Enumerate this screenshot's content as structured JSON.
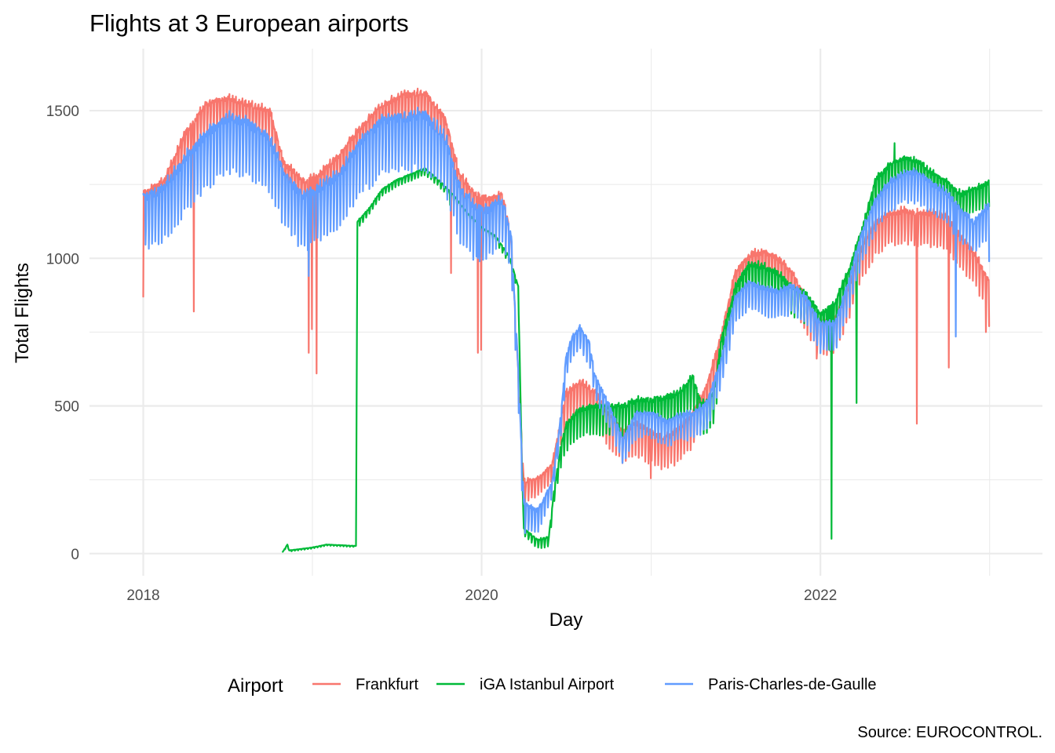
{
  "chart_data": {
    "type": "line",
    "title": "Flights at 3 European airports",
    "xlabel": "Day",
    "ylabel": "Total Flights",
    "caption": "Source: EUROCONTROL.",
    "legend_title": "Airport",
    "legend_position": "bottom",
    "grid": true,
    "xlim": [
      "2017-09-07",
      "2023-04-25"
    ],
    "ylim": [
      -75,
      1710
    ],
    "x_ticks": [
      2018,
      2020,
      2022
    ],
    "y_ticks": [
      0,
      500,
      1000,
      1500
    ],
    "colors": {
      "Frankfurt": "#F8766D",
      "iGA Istanbul Airport": "#00BA38",
      "Paris-Charles-de-Gaulle": "#619CFF"
    },
    "series": [
      {
        "name": "Frankfurt",
        "color": "#F8766D",
        "base": [
          [
            "2018-01-01",
            1200
          ],
          [
            "2018-02-15",
            1240
          ],
          [
            "2018-04-01",
            1400
          ],
          [
            "2018-05-15",
            1500
          ],
          [
            "2018-07-01",
            1520
          ],
          [
            "2018-08-15",
            1500
          ],
          [
            "2018-10-01",
            1480
          ],
          [
            "2018-11-01",
            1300
          ],
          [
            "2018-12-15",
            1240
          ],
          [
            "2019-01-15",
            1260
          ],
          [
            "2019-03-01",
            1330
          ],
          [
            "2019-04-15",
            1420
          ],
          [
            "2019-06-01",
            1500
          ],
          [
            "2019-07-15",
            1530
          ],
          [
            "2019-09-01",
            1540
          ],
          [
            "2019-10-15",
            1450
          ],
          [
            "2019-11-15",
            1260
          ],
          [
            "2019-12-15",
            1200
          ],
          [
            "2020-01-15",
            1180
          ],
          [
            "2020-02-15",
            1200
          ],
          [
            "2020-03-05",
            1050
          ],
          [
            "2020-03-20",
            600
          ],
          [
            "2020-04-01",
            230
          ],
          [
            "2020-05-01",
            240
          ],
          [
            "2020-06-01",
            290
          ],
          [
            "2020-07-01",
            520
          ],
          [
            "2020-08-01",
            560
          ],
          [
            "2020-09-01",
            530
          ],
          [
            "2020-10-01",
            450
          ],
          [
            "2020-11-01",
            390
          ],
          [
            "2020-12-01",
            420
          ],
          [
            "2021-01-01",
            390
          ],
          [
            "2021-02-01",
            370
          ],
          [
            "2021-03-01",
            400
          ],
          [
            "2021-04-01",
            450
          ],
          [
            "2021-05-01",
            550
          ],
          [
            "2021-06-01",
            720
          ],
          [
            "2021-07-01",
            930
          ],
          [
            "2021-08-01",
            990
          ],
          [
            "2021-09-01",
            1000
          ],
          [
            "2021-10-01",
            980
          ],
          [
            "2021-11-01",
            930
          ],
          [
            "2021-12-01",
            840
          ],
          [
            "2022-01-01",
            760
          ],
          [
            "2022-02-01",
            770
          ],
          [
            "2022-03-01",
            870
          ],
          [
            "2022-04-01",
            1020
          ],
          [
            "2022-05-01",
            1100
          ],
          [
            "2022-06-01",
            1130
          ],
          [
            "2022-07-01",
            1140
          ],
          [
            "2022-08-01",
            1130
          ],
          [
            "2022-09-01",
            1130
          ],
          [
            "2022-10-01",
            1120
          ],
          [
            "2022-11-01",
            1050
          ],
          [
            "2022-12-01",
            990
          ],
          [
            "2022-12-31",
            900
          ]
        ],
        "amplitude": [
          [
            "2018-01-01",
            60
          ],
          [
            "2019-12-31",
            60
          ],
          [
            "2020-03-20",
            40
          ],
          [
            "2020-06-01",
            30
          ],
          [
            "2020-07-01",
            60
          ],
          [
            "2021-06-01",
            60
          ],
          [
            "2022-12-31",
            60
          ]
        ],
        "spikes": [
          [
            "2018-01-01",
            870
          ],
          [
            "2018-04-20",
            820
          ],
          [
            "2018-12-24",
            680
          ],
          [
            "2018-12-31",
            760
          ],
          [
            "2019-01-10",
            610
          ],
          [
            "2019-10-27",
            950
          ],
          [
            "2019-12-24",
            680
          ],
          [
            "2019-12-31",
            690
          ],
          [
            "2020-12-31",
            255
          ],
          [
            "2021-12-24",
            660
          ],
          [
            "2022-07-28",
            440
          ],
          [
            "2022-10-05",
            630
          ],
          [
            "2022-12-24",
            750
          ],
          [
            "2022-12-31",
            770
          ]
        ]
      },
      {
        "name": "iGA Istanbul Airport",
        "color": "#00BA38",
        "base": [
          [
            "2018-10-29",
            5
          ],
          [
            "2018-11-08",
            30
          ],
          [
            "2018-11-12",
            10
          ],
          [
            "2019-01-01",
            20
          ],
          [
            "2019-02-01",
            30
          ],
          [
            "2019-04-05",
            25
          ],
          [
            "2019-04-08",
            1120
          ],
          [
            "2019-05-01",
            1160
          ],
          [
            "2019-06-01",
            1230
          ],
          [
            "2019-07-01",
            1260
          ],
          [
            "2019-08-01",
            1280
          ],
          [
            "2019-09-01",
            1300
          ],
          [
            "2019-10-01",
            1260
          ],
          [
            "2019-11-01",
            1210
          ],
          [
            "2019-12-01",
            1150
          ],
          [
            "2020-01-01",
            1100
          ],
          [
            "2020-02-01",
            1070
          ],
          [
            "2020-03-01",
            1000
          ],
          [
            "2020-03-20",
            900
          ],
          [
            "2020-03-28",
            300
          ],
          [
            "2020-04-01",
            80
          ],
          [
            "2020-05-01",
            40
          ],
          [
            "2020-05-25",
            50
          ],
          [
            "2020-06-05",
            200
          ],
          [
            "2020-06-20",
            350
          ],
          [
            "2020-07-01",
            420
          ],
          [
            "2020-08-01",
            470
          ],
          [
            "2020-09-01",
            480
          ],
          [
            "2020-10-01",
            480
          ],
          [
            "2020-11-01",
            480
          ],
          [
            "2020-12-01",
            500
          ],
          [
            "2021-01-01",
            500
          ],
          [
            "2021-02-01",
            510
          ],
          [
            "2021-03-01",
            520
          ],
          [
            "2021-04-01",
            580
          ],
          [
            "2021-04-20",
            480
          ],
          [
            "2021-05-15",
            520
          ],
          [
            "2021-06-01",
            700
          ],
          [
            "2021-07-01",
            880
          ],
          [
            "2021-08-01",
            960
          ],
          [
            "2021-09-01",
            950
          ],
          [
            "2021-10-01",
            930
          ],
          [
            "2021-11-01",
            880
          ],
          [
            "2021-12-01",
            860
          ],
          [
            "2022-01-01",
            790
          ],
          [
            "2022-02-01",
            830
          ],
          [
            "2022-03-01",
            930
          ],
          [
            "2022-04-01",
            1080
          ],
          [
            "2022-05-01",
            1250
          ],
          [
            "2022-06-01",
            1300
          ],
          [
            "2022-07-01",
            1320
          ],
          [
            "2022-08-01",
            1310
          ],
          [
            "2022-09-01",
            1270
          ],
          [
            "2022-10-01",
            1240
          ],
          [
            "2022-11-01",
            1200
          ],
          [
            "2022-12-01",
            1220
          ],
          [
            "2022-12-31",
            1240
          ]
        ],
        "amplitude": [
          [
            "2018-10-29",
            2
          ],
          [
            "2019-04-05",
            2
          ],
          [
            "2019-04-08",
            12
          ],
          [
            "2020-03-01",
            12
          ],
          [
            "2020-04-01",
            12
          ],
          [
            "2020-06-01",
            20
          ],
          [
            "2020-07-01",
            50
          ],
          [
            "2021-06-01",
            60
          ],
          [
            "2022-12-31",
            45
          ]
        ],
        "spikes": [
          [
            "2019-10-25",
            1180
          ],
          [
            "2022-01-25",
            50
          ],
          [
            "2022-01-20",
            690
          ],
          [
            "2022-03-20",
            510
          ],
          [
            "2022-06-10",
            1390
          ]
        ]
      },
      {
        "name": "Paris-Charles-de-Gaulle",
        "color": "#619CFF",
        "base": [
          [
            "2018-01-01",
            1170
          ],
          [
            "2018-02-15",
            1200
          ],
          [
            "2018-04-01",
            1300
          ],
          [
            "2018-05-15",
            1380
          ],
          [
            "2018-07-01",
            1440
          ],
          [
            "2018-08-15",
            1420
          ],
          [
            "2018-10-01",
            1370
          ],
          [
            "2018-11-01",
            1250
          ],
          [
            "2018-12-15",
            1170
          ],
          [
            "2019-01-15",
            1200
          ],
          [
            "2019-03-01",
            1250
          ],
          [
            "2019-04-15",
            1360
          ],
          [
            "2019-06-01",
            1430
          ],
          [
            "2019-07-15",
            1440
          ],
          [
            "2019-09-01",
            1450
          ],
          [
            "2019-10-15",
            1370
          ],
          [
            "2019-11-15",
            1200
          ],
          [
            "2019-12-15",
            1140
          ],
          [
            "2020-01-15",
            1130
          ],
          [
            "2020-02-15",
            1170
          ],
          [
            "2020-03-05",
            1050
          ],
          [
            "2020-03-20",
            600
          ],
          [
            "2020-04-01",
            150
          ],
          [
            "2020-05-01",
            130
          ],
          [
            "2020-06-01",
            230
          ],
          [
            "2020-06-20",
            450
          ],
          [
            "2020-07-01",
            650
          ],
          [
            "2020-07-15",
            720
          ],
          [
            "2020-08-01",
            750
          ],
          [
            "2020-08-20",
            700
          ],
          [
            "2020-09-01",
            590
          ],
          [
            "2020-10-01",
            490
          ],
          [
            "2020-11-01",
            370
          ],
          [
            "2020-12-01",
            460
          ],
          [
            "2021-01-01",
            460
          ],
          [
            "2021-02-01",
            430
          ],
          [
            "2021-03-01",
            450
          ],
          [
            "2021-04-01",
            460
          ],
          [
            "2021-05-01",
            490
          ],
          [
            "2021-06-01",
            640
          ],
          [
            "2021-07-01",
            850
          ],
          [
            "2021-08-01",
            900
          ],
          [
            "2021-09-01",
            880
          ],
          [
            "2021-10-01",
            870
          ],
          [
            "2021-11-01",
            890
          ],
          [
            "2021-12-01",
            850
          ],
          [
            "2022-01-01",
            760
          ],
          [
            "2022-02-01",
            760
          ],
          [
            "2022-03-01",
            890
          ],
          [
            "2022-04-01",
            1070
          ],
          [
            "2022-05-01",
            1180
          ],
          [
            "2022-06-01",
            1240
          ],
          [
            "2022-07-01",
            1270
          ],
          [
            "2022-08-01",
            1270
          ],
          [
            "2022-09-01",
            1230
          ],
          [
            "2022-10-01",
            1200
          ],
          [
            "2022-11-01",
            1140
          ],
          [
            "2022-12-01",
            1100
          ],
          [
            "2022-12-31",
            1160
          ]
        ],
        "amplitude": [
          [
            "2018-01-01",
            100
          ],
          [
            "2019-12-31",
            100
          ],
          [
            "2020-03-20",
            60
          ],
          [
            "2020-06-01",
            30
          ],
          [
            "2020-07-01",
            40
          ],
          [
            "2021-06-01",
            50
          ],
          [
            "2022-12-31",
            60
          ]
        ],
        "spikes": [
          [
            "2018-12-24",
            940
          ],
          [
            "2019-12-24",
            1000
          ],
          [
            "2021-12-24",
            740
          ],
          [
            "2022-10-20",
            735
          ],
          [
            "2022-12-31",
            990
          ]
        ]
      }
    ]
  }
}
